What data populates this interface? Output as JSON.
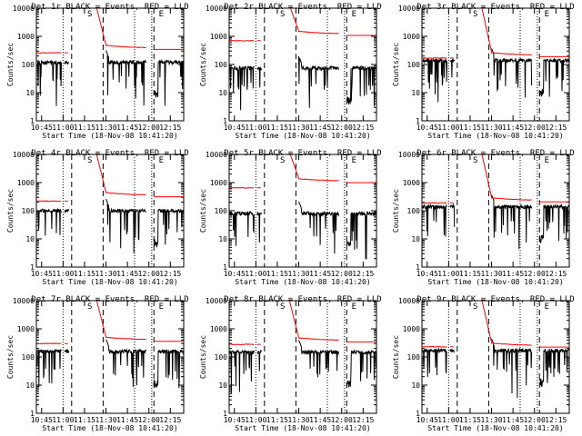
{
  "chart_data": {
    "type": "line",
    "grid": false,
    "shared": {
      "xlabel": "Start Time (18-Nov-08 10:41:20)",
      "ylabel": "Counts/sec",
      "title_suffix": " BLACK = Events, RED = LLD",
      "x_ticks": [
        "10:45",
        "11:00",
        "11:15",
        "11:30",
        "11:45",
        "12:00",
        "12:15"
      ],
      "y_ticks": [
        "1",
        "10",
        "100",
        "1000",
        "10000"
      ],
      "ylim": [
        1,
        10000
      ],
      "yscale": "log",
      "markers": [
        {
          "label": "S",
          "time": "11:15"
        },
        {
          "label": "E",
          "time": "12:05"
        }
      ],
      "series_colors": {
        "events": "#000000",
        "lld": "#ff0000"
      }
    },
    "panels": [
      {
        "title": "Det 1r",
        "events_level": 120,
        "lld_level": 260,
        "post_lld": 380
      },
      {
        "title": "Det 2r",
        "events_level": 75,
        "lld_level": 700,
        "post_lld": 1200
      },
      {
        "title": "Det 3r",
        "events_level": 140,
        "lld_level": 170,
        "post_lld": 210
      },
      {
        "title": "Det 4r",
        "events_level": 100,
        "lld_level": 220,
        "post_lld": 350
      },
      {
        "title": "Det 5r",
        "events_level": 80,
        "lld_level": 650,
        "post_lld": 1100
      },
      {
        "title": "Det 6r",
        "events_level": 140,
        "lld_level": 190,
        "post_lld": 230
      },
      {
        "title": "Det 7r",
        "events_level": 160,
        "lld_level": 300,
        "post_lld": 400
      },
      {
        "title": "Det 8r",
        "events_level": 150,
        "lld_level": 280,
        "post_lld": 380
      },
      {
        "title": "Det 9r",
        "events_level": 170,
        "lld_level": 230,
        "post_lld": 250
      }
    ]
  }
}
